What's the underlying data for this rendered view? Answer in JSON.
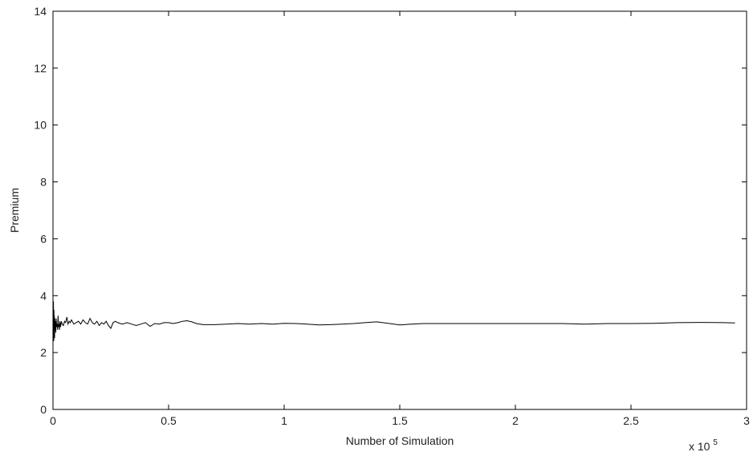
{
  "chart_data": {
    "type": "line",
    "title": "",
    "xlabel": "Number of Simulation",
    "ylabel": "Premium",
    "x_multiplier_label": {
      "base": "x 10",
      "exponent": "5"
    },
    "xlim": [
      0,
      3
    ],
    "ylim": [
      0,
      14
    ],
    "x_ticks": [
      0,
      0.5,
      1,
      1.5,
      2,
      2.5,
      3
    ],
    "x_tick_labels": [
      "0",
      "0.5",
      "1",
      "1.5",
      "2",
      "2.5",
      "3"
    ],
    "y_ticks": [
      0,
      2,
      4,
      6,
      8,
      10,
      12,
      14
    ],
    "y_tick_labels": [
      "0",
      "2",
      "4",
      "6",
      "8",
      "10",
      "12",
      "14"
    ],
    "grid": false,
    "line_color": "#000000",
    "series": [
      {
        "x": [
          0.001,
          0.002,
          0.003,
          0.004,
          0.005,
          0.006,
          0.007,
          0.008,
          0.009,
          0.01,
          0.012,
          0.014,
          0.016,
          0.018,
          0.02,
          0.022,
          0.024,
          0.026,
          0.028,
          0.03,
          0.033,
          0.036,
          0.04,
          0.045,
          0.05,
          0.055,
          0.06,
          0.065,
          0.07,
          0.075,
          0.08,
          0.09,
          0.1,
          0.11,
          0.12,
          0.13,
          0.14,
          0.15,
          0.16,
          0.17,
          0.18,
          0.19,
          0.2,
          0.21,
          0.22,
          0.23,
          0.24,
          0.25,
          0.26,
          0.27,
          0.28,
          0.3,
          0.32,
          0.34,
          0.36,
          0.38,
          0.4,
          0.42,
          0.44,
          0.46,
          0.48,
          0.5,
          0.52,
          0.54,
          0.56,
          0.58,
          0.6,
          0.62,
          0.65,
          0.7,
          0.75,
          0.8,
          0.85,
          0.9,
          0.95,
          1.0,
          1.05,
          1.1,
          1.15,
          1.2,
          1.25,
          1.3,
          1.35,
          1.4,
          1.45,
          1.5,
          1.55,
          1.6,
          1.7,
          1.8,
          1.9,
          2.0,
          2.1,
          2.2,
          2.3,
          2.4,
          2.5,
          2.6,
          2.7,
          2.8,
          2.9,
          2.95
        ],
        "y": [
          2.6,
          3.8,
          2.4,
          3.5,
          2.7,
          3.3,
          2.5,
          3.2,
          2.8,
          3.1,
          2.7,
          3.2,
          2.9,
          3.0,
          2.8,
          3.3,
          2.9,
          3.0,
          2.8,
          3.1,
          2.9,
          3.1,
          3.0,
          2.95,
          3.1,
          3.05,
          3.25,
          3.0,
          3.1,
          3.05,
          3.15,
          3.0,
          3.05,
          3.1,
          3.0,
          3.15,
          3.05,
          3.0,
          3.2,
          3.05,
          3.0,
          3.1,
          2.95,
          3.05,
          3.0,
          3.1,
          2.95,
          2.85,
          3.05,
          3.1,
          3.05,
          3.0,
          3.05,
          3.0,
          2.95,
          3.0,
          3.05,
          2.92,
          3.02,
          3.0,
          3.05,
          3.05,
          3.02,
          3.05,
          3.1,
          3.12,
          3.08,
          3.02,
          2.98,
          2.98,
          3.0,
          3.02,
          3.0,
          3.02,
          3.0,
          3.03,
          3.02,
          3.0,
          2.97,
          2.98,
          3.0,
          3.02,
          3.05,
          3.08,
          3.03,
          2.97,
          3.0,
          3.02,
          3.02,
          3.02,
          3.02,
          3.02,
          3.02,
          3.02,
          3.0,
          3.02,
          3.02,
          3.03,
          3.05,
          3.06,
          3.05,
          3.04
        ]
      }
    ]
  }
}
